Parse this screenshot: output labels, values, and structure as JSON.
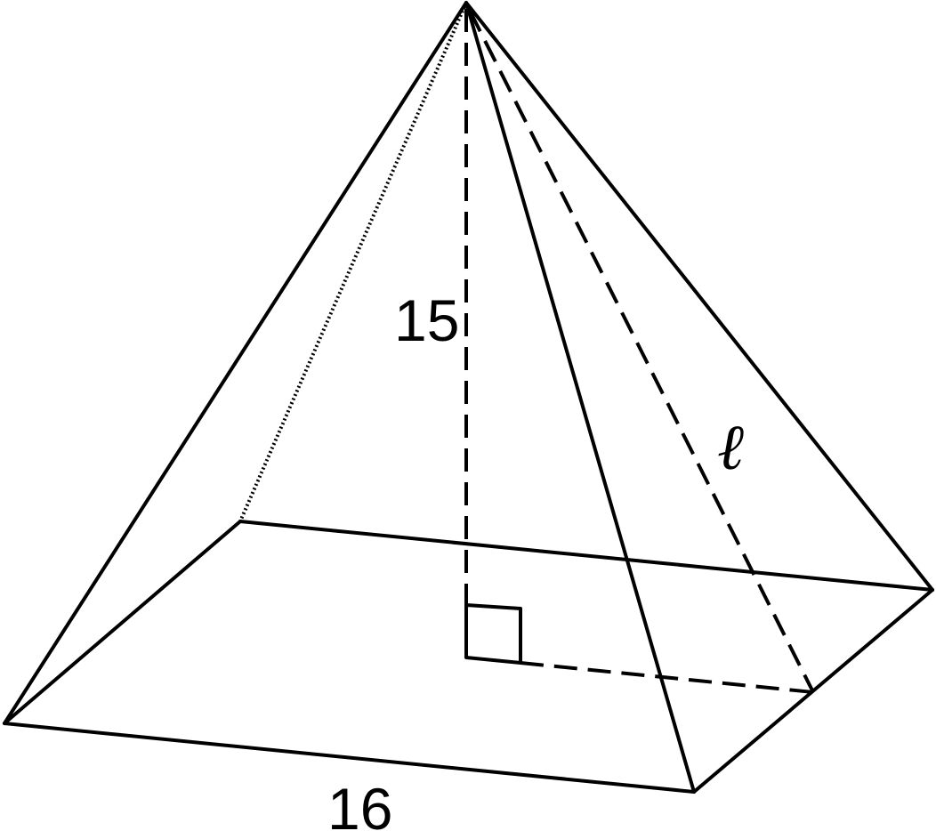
{
  "figure": {
    "height_label": "15",
    "base_label": "16",
    "slant_label": "ℓ"
  },
  "colors": {
    "stroke": "#000000",
    "background": "#ffffff"
  }
}
